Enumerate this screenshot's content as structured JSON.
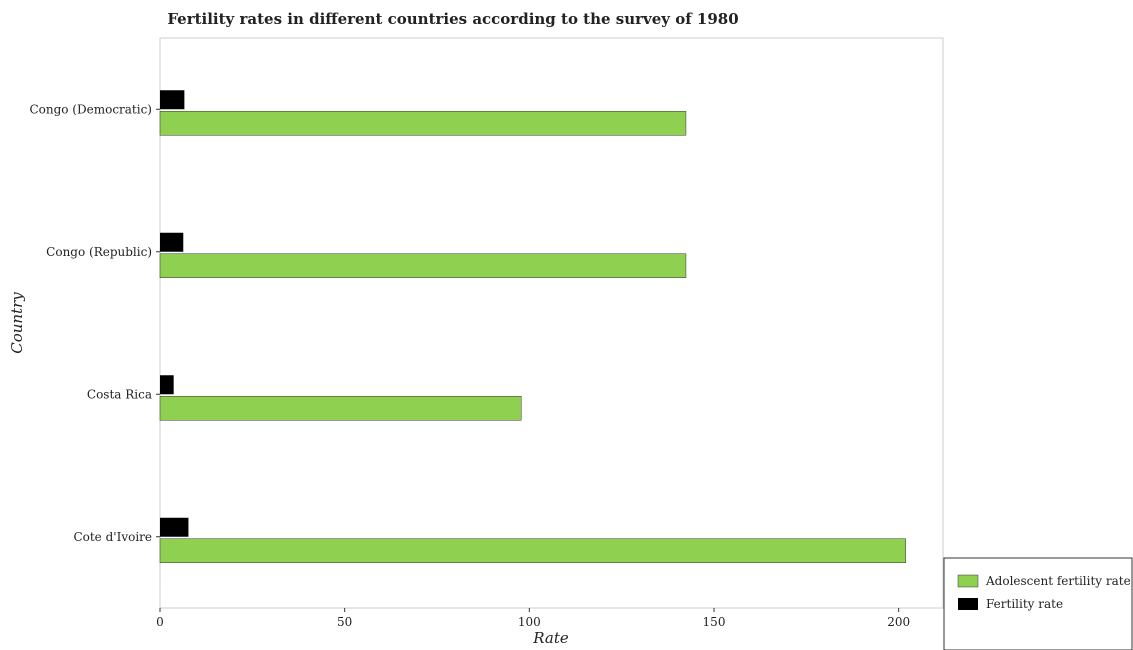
{
  "chart_data": {
    "type": "bar",
    "orientation": "horizontal",
    "title": "Fertility rates in different countries according to the survey of 1980",
    "xlabel": "Rate",
    "ylabel": "Country",
    "categories": [
      "Congo (Democratic)",
      "Congo (Republic)",
      "Costa Rica",
      "Cote d'Ivoire"
    ],
    "series": [
      {
        "name": "Adolescent fertility rate",
        "color": "#90d050",
        "values": [
          142.4,
          142.4,
          97.8,
          201.9
        ]
      },
      {
        "name": "Fertility rate",
        "color": "#000000",
        "values": [
          6.6,
          6.3,
          3.7,
          7.7
        ]
      }
    ],
    "xlim": [
      0,
      212
    ],
    "xticks": [
      0,
      50,
      100,
      150,
      200
    ],
    "grid": false,
    "legend_position": "bottom-right"
  }
}
